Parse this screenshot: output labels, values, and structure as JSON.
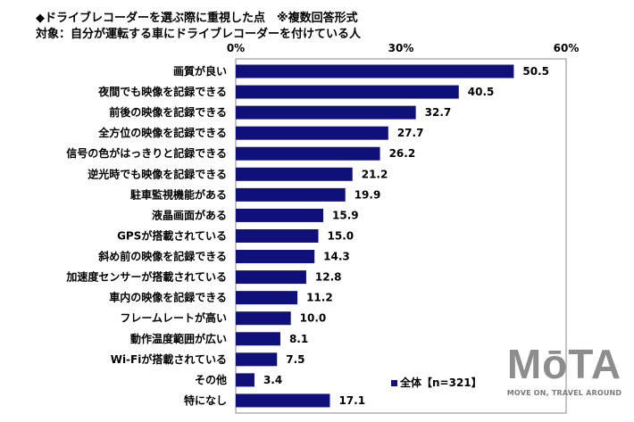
{
  "chart_data": {
    "type": "bar",
    "orientation": "horizontal",
    "title": "◆ドライブレコーダーを選ぶ際に重視した点　※複数回答形式",
    "subtitle": "対象：自分が運転する車にドライブレコーダーを付けている人",
    "categories": [
      "画質が良い",
      "夜間でも映像を記録できる",
      "前後の映像を記録できる",
      "全方位の映像を記録できる",
      "信号の色がはっきりと記録できる",
      "逆光時でも映像を記録できる",
      "駐車監視機能がある",
      "液晶画面がある",
      "GPSが搭載されている",
      "斜め前の映像を記録できる",
      "加速度センサーが搭載されている",
      "車内の映像を記録できる",
      "フレームレートが高い",
      "動作温度範囲が広い",
      "Wi-Fiが搭載されている",
      "その他",
      "特になし"
    ],
    "series": [
      {
        "name": "全体【n=321】",
        "values": [
          50.5,
          40.5,
          32.7,
          27.7,
          26.2,
          21.2,
          19.9,
          15.9,
          15.0,
          14.3,
          12.8,
          11.2,
          10.0,
          8.1,
          7.5,
          3.4,
          17.1
        ],
        "color": "#10107a"
      }
    ],
    "value_labels": [
      "50.5",
      "40.5",
      "32.7",
      "27.7",
      "26.2",
      "21.2",
      "19.9",
      "15.9",
      "15.0",
      "14.3",
      "12.8",
      "11.2",
      "10.0",
      "8.1",
      "7.5",
      "3.4",
      "17.1"
    ],
    "xlim": [
      0,
      60
    ],
    "xticks": [
      "0%",
      "30%",
      "60%"
    ],
    "legend_position": "bottom-right",
    "grid": false
  },
  "logo": {
    "text": "MōTA",
    "tagline": "MOVE ON, TRAVEL AROUND"
  }
}
